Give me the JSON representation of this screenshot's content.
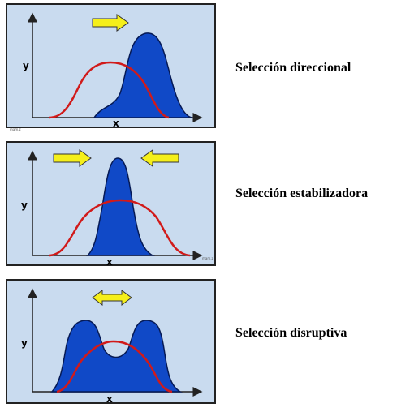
{
  "panels": [
    {
      "y_label": "y",
      "x_label": "x",
      "caption": "Selección direccional",
      "note": "mam.z"
    },
    {
      "y_label": "y",
      "x_label": "x",
      "caption": "Selección estabilizadora",
      "note": "mam.z"
    },
    {
      "y_label": "y",
      "x_label": "x",
      "caption": "Selección disruptiva"
    }
  ]
}
